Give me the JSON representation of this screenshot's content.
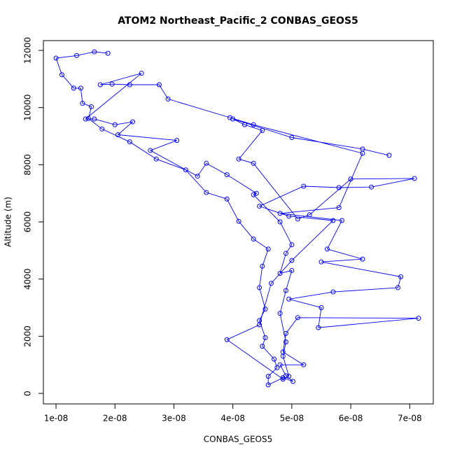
{
  "chart_data": {
    "type": "line",
    "title": "ATOM2 Northeast_Pacific_2 CONBAS_GEOS5",
    "x_label": "CONBAS_GEOS5",
    "y_label": "Altitude (m)",
    "color": "#0000ff",
    "xlim": [
      7.86e-09,
      7.4e-08
    ],
    "ylim": [
      -367,
      12343
    ],
    "xticks": [
      {
        "value": 1e-08,
        "label": "1e-08"
      },
      {
        "value": 2e-08,
        "label": "2e-08"
      },
      {
        "value": 3e-08,
        "label": "3e-08"
      },
      {
        "value": 4e-08,
        "label": "4e-08"
      },
      {
        "value": 5e-08,
        "label": "5e-08"
      },
      {
        "value": 6e-08,
        "label": "6e-08"
      },
      {
        "value": 7e-08,
        "label": "7e-08"
      }
    ],
    "yticks": [
      0,
      2000,
      4000,
      6000,
      8000,
      10000,
      12000
    ],
    "x": [
      1.88e-08,
      1.65e-08,
      1.35e-08,
      1e-08,
      1.1e-08,
      1.3e-08,
      1.42e-08,
      1.45e-08,
      1.6e-08,
      1.55e-08,
      1.78e-08,
      2.25e-08,
      2.7e-08,
      3.2e-08,
      3.55e-08,
      3.9e-08,
      4.1e-08,
      4.35e-08,
      4.6e-08,
      4.5e-08,
      4.45e-08,
      4.55e-08,
      4.45e-08,
      4.55e-08,
      4.5e-08,
      4.7e-08,
      4.75e-08,
      4.6e-08,
      4.6e-08,
      4.85e-08,
      5.02e-08,
      4.9e-08,
      4.8e-08,
      5.2e-08,
      4.85e-08,
      4.9e-08,
      5.1e-08,
      7.15e-08,
      5.45e-08,
      5.5e-08,
      4.95e-08,
      5.7e-08,
      6.8e-08,
      6.85e-08,
      5.5e-08,
      6.2e-08,
      5.6e-08,
      5.85e-08,
      4.8e-08,
      5.8e-08,
      6.2e-08,
      4.35e-08,
      3.95e-08,
      2.9e-08,
      2.75e-08,
      2.25e-08,
      1.95e-08,
      1.75e-08,
      2.45e-08,
      1.5e-08,
      1.65e-08,
      2e-08,
      2.3e-08,
      2.05e-08,
      3.05e-08,
      2.6e-08,
      3.4e-08,
      3.55e-08,
      3.9e-08,
      4.4e-08,
      4.35e-08,
      4.8e-08,
      5e-08,
      4.9e-08,
      4.8e-08,
      5e-08,
      4.9e-08,
      4.8e-08,
      4.9e-08,
      4.85e-08,
      4.95e-08,
      4.85e-08,
      3.9e-08,
      4.45e-08,
      4.65e-08,
      5e-08,
      5.7e-08,
      4.95e-08,
      4.45e-08,
      5.2e-08,
      5.8e-08,
      6.35e-08,
      7.08e-08,
      6e-08,
      5.3e-08,
      5.1e-08,
      4.35e-08,
      4.1e-08,
      4.5e-08,
      4.2e-08,
      4e-08,
      5e-08,
      6.2e-08,
      6.65e-08
    ],
    "values": [
      11900,
      11950,
      11820,
      11730,
      11150,
      10680,
      10680,
      10150,
      10030,
      9620,
      9250,
      8800,
      8200,
      7820,
      7030,
      6800,
      6020,
      5400,
      5050,
      4450,
      3700,
      2950,
      2550,
      1950,
      1650,
      1200,
      900,
      600,
      300,
      550,
      420,
      620,
      1000,
      1000,
      1450,
      2100,
      2650,
      2630,
      2300,
      3000,
      3300,
      3550,
      3700,
      4080,
      4600,
      4700,
      5050,
      6050,
      6300,
      6500,
      8400,
      9400,
      9650,
      10300,
      10800,
      10800,
      10820,
      10800,
      11200,
      9600,
      9600,
      9400,
      9500,
      9050,
      8850,
      8500,
      7600,
      8050,
      7650,
      7000,
      6950,
      6000,
      5200,
      4900,
      4200,
      4300,
      3600,
      2800,
      1800,
      1300,
      600,
      500,
      1880,
      2400,
      3850,
      4650,
      6050,
      6200,
      6550,
      7250,
      7200,
      7220,
      7520,
      7500,
      6250,
      6100,
      8050,
      8200,
      9200,
      9400,
      9600,
      8950,
      8550,
      8330
    ]
  }
}
